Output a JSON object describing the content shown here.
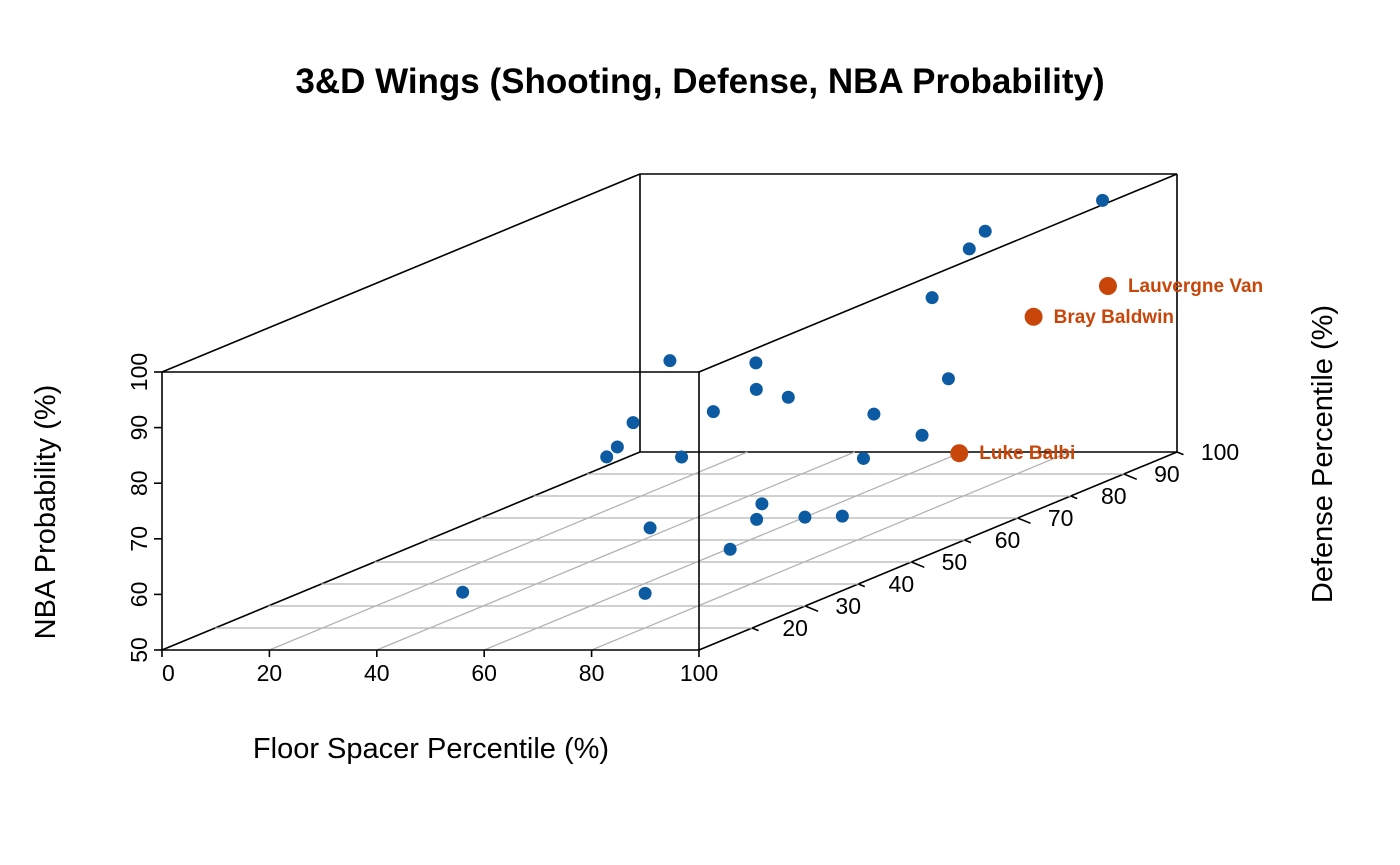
{
  "chart_data": {
    "type": "scatter",
    "title": "3&D Wings (Shooting, Defense, NBA Probability)",
    "xlabel": "Floor Spacer Percentile (%)",
    "ylabel": "Defense Percentile (%)",
    "zlabel": "NBA Probability (%)",
    "xlim": [
      0,
      100
    ],
    "ylim": [
      10,
      100
    ],
    "zlim": [
      50,
      100
    ],
    "x_ticks": [
      "0",
      "20",
      "40",
      "60",
      "80",
      "100"
    ],
    "y_ticks": [
      "20",
      "30",
      "40",
      "50",
      "60",
      "70",
      "80",
      "90",
      "100"
    ],
    "z_ticks": [
      "50",
      "60",
      "70",
      "80",
      "90",
      "100"
    ],
    "grid": "floor",
    "colors": {
      "points": "#0b5aa2",
      "highlight": "#c8460a",
      "grid": "#b4b4b4",
      "box": "#000000"
    },
    "points": [
      {
        "x": 55,
        "y": 11,
        "z": 60
      },
      {
        "x": 57,
        "y": 48,
        "z": 87
      },
      {
        "x": 63,
        "y": 35,
        "z": 81
      },
      {
        "x": 66,
        "y": 29,
        "z": 79
      },
      {
        "x": 66,
        "y": 27,
        "z": 78
      },
      {
        "x": 73,
        "y": 40,
        "z": 81
      },
      {
        "x": 74,
        "y": 47,
        "z": 87
      },
      {
        "x": 75,
        "y": 32,
        "z": 76
      },
      {
        "x": 81,
        "y": 20,
        "z": 68
      },
      {
        "x": 81,
        "y": 40,
        "z": 85
      },
      {
        "x": 83,
        "y": 44,
        "z": 82
      },
      {
        "x": 87,
        "y": 13,
        "z": 59
      },
      {
        "x": 86,
        "y": 36,
        "z": 66
      },
      {
        "x": 87,
        "y": 34,
        "z": 64
      },
      {
        "x": 88,
        "y": 28,
        "z": 61
      },
      {
        "x": 90,
        "y": 74,
        "z": 100
      },
      {
        "x": 90,
        "y": 71,
        "z": 98
      },
      {
        "x": 90,
        "y": 64,
        "z": 92
      },
      {
        "x": 94,
        "y": 49,
        "z": 77
      },
      {
        "x": 95,
        "y": 35,
        "z": 64
      },
      {
        "x": 97,
        "y": 44,
        "z": 71
      },
      {
        "x": 99,
        "y": 38,
        "z": 63
      },
      {
        "x": 100,
        "y": 52,
        "z": 72
      },
      {
        "x": 97,
        "y": 60,
        "z": 79
      },
      {
        "x": 98,
        "y": 88,
        "z": 100
      }
    ],
    "highlighted": [
      {
        "name": "Bray Baldwin",
        "x": 100,
        "y": 73,
        "z": 85
      },
      {
        "name": "Lauvergne Van",
        "x": 100,
        "y": 87,
        "z": 85
      },
      {
        "name": "Luke Balbi",
        "x": 100,
        "y": 59,
        "z": 66
      }
    ]
  }
}
